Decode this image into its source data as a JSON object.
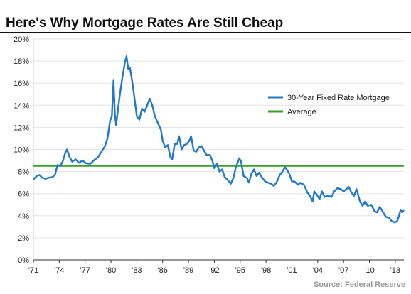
{
  "header": {
    "title": "Here's Why Mortgage Rates Are Still Cheap"
  },
  "footer": {
    "source": "Source: Federal Reserve"
  },
  "chart_data": {
    "type": "line",
    "title": "Here's Why Mortgage Rates Are Still Cheap",
    "xlabel": "",
    "ylabel": "",
    "xlim": [
      1971.0,
      2014.0
    ],
    "ylim": [
      0,
      20
    ],
    "y_tick_values": [
      0,
      2,
      4,
      6,
      8,
      10,
      12,
      14,
      16,
      18,
      20
    ],
    "y_tick_labels": [
      "0%",
      "2%",
      "4%",
      "6%",
      "8%",
      "10%",
      "12%",
      "14%",
      "16%",
      "18%",
      "20%"
    ],
    "x_tick_values": [
      1971,
      1974,
      1977,
      1980,
      1983,
      1986,
      1989,
      1992,
      1995,
      1998,
      2001,
      2004,
      2007,
      2010,
      2013
    ],
    "x_tick_labels": [
      "'71",
      "'74",
      "'77",
      "'80",
      "'83",
      "'86",
      "'89",
      "'92",
      "'95",
      "'98",
      "'01",
      "'04",
      "'07",
      "'10",
      "'13"
    ],
    "grid": "horizontal",
    "legend_position": "right",
    "series": [
      {
        "name": "30-Year Fixed Rate Mortgage",
        "color": "#1f78c8",
        "points": [
          [
            1971.0,
            7.3
          ],
          [
            1971.4,
            7.6
          ],
          [
            1971.7,
            7.7
          ],
          [
            1972.0,
            7.45
          ],
          [
            1972.4,
            7.35
          ],
          [
            1972.8,
            7.45
          ],
          [
            1973.2,
            7.5
          ],
          [
            1973.5,
            7.7
          ],
          [
            1973.8,
            8.6
          ],
          [
            1974.1,
            8.5
          ],
          [
            1974.4,
            8.9
          ],
          [
            1974.7,
            9.7
          ],
          [
            1974.9,
            10.0
          ],
          [
            1975.2,
            9.3
          ],
          [
            1975.5,
            8.9
          ],
          [
            1975.9,
            9.1
          ],
          [
            1976.3,
            8.8
          ],
          [
            1976.7,
            9.0
          ],
          [
            1977.1,
            8.75
          ],
          [
            1977.6,
            8.7
          ],
          [
            1978.0,
            9.0
          ],
          [
            1978.5,
            9.3
          ],
          [
            1978.9,
            9.8
          ],
          [
            1979.3,
            10.3
          ],
          [
            1979.6,
            11.0
          ],
          [
            1979.9,
            12.6
          ],
          [
            1980.1,
            13.0
          ],
          [
            1980.3,
            16.3
          ],
          [
            1980.45,
            13.2
          ],
          [
            1980.6,
            12.2
          ],
          [
            1980.8,
            13.5
          ],
          [
            1981.0,
            14.8
          ],
          [
            1981.3,
            16.4
          ],
          [
            1981.6,
            17.8
          ],
          [
            1981.8,
            18.45
          ],
          [
            1982.0,
            17.3
          ],
          [
            1982.2,
            17.4
          ],
          [
            1982.5,
            16.0
          ],
          [
            1982.7,
            14.8
          ],
          [
            1983.0,
            13.0
          ],
          [
            1983.3,
            12.7
          ],
          [
            1983.6,
            13.7
          ],
          [
            1983.9,
            13.4
          ],
          [
            1984.2,
            14.0
          ],
          [
            1984.5,
            14.6
          ],
          [
            1984.8,
            14.0
          ],
          [
            1985.1,
            13.0
          ],
          [
            1985.5,
            12.3
          ],
          [
            1985.8,
            11.8
          ],
          [
            1986.0,
            10.8
          ],
          [
            1986.3,
            10.2
          ],
          [
            1986.6,
            10.4
          ],
          [
            1986.9,
            9.3
          ],
          [
            1987.1,
            9.1
          ],
          [
            1987.4,
            10.5
          ],
          [
            1987.7,
            10.5
          ],
          [
            1987.9,
            11.2
          ],
          [
            1988.2,
            10.0
          ],
          [
            1988.5,
            10.4
          ],
          [
            1988.8,
            10.5
          ],
          [
            1989.1,
            10.8
          ],
          [
            1989.3,
            11.2
          ],
          [
            1989.6,
            9.9
          ],
          [
            1989.9,
            9.8
          ],
          [
            1990.2,
            10.2
          ],
          [
            1990.5,
            10.3
          ],
          [
            1990.8,
            9.9
          ],
          [
            1991.1,
            9.5
          ],
          [
            1991.5,
            9.5
          ],
          [
            1991.8,
            8.9
          ],
          [
            1992.0,
            8.3
          ],
          [
            1992.3,
            8.7
          ],
          [
            1992.6,
            8.0
          ],
          [
            1992.9,
            8.2
          ],
          [
            1993.2,
            7.5
          ],
          [
            1993.6,
            7.2
          ],
          [
            1993.9,
            6.9
          ],
          [
            1994.2,
            7.4
          ],
          [
            1994.5,
            8.4
          ],
          [
            1994.9,
            9.2
          ],
          [
            1995.1,
            8.9
          ],
          [
            1995.4,
            7.6
          ],
          [
            1995.8,
            7.4
          ],
          [
            1996.0,
            7.0
          ],
          [
            1996.3,
            7.8
          ],
          [
            1996.6,
            8.2
          ],
          [
            1996.9,
            7.6
          ],
          [
            1997.2,
            7.9
          ],
          [
            1997.5,
            7.5
          ],
          [
            1997.9,
            7.1
          ],
          [
            1998.2,
            7.0
          ],
          [
            1998.6,
            6.9
          ],
          [
            1998.9,
            6.7
          ],
          [
            1999.2,
            7.0
          ],
          [
            1999.6,
            7.7
          ],
          [
            1999.9,
            8.0
          ],
          [
            2000.2,
            8.4
          ],
          [
            2000.4,
            8.2
          ],
          [
            2000.7,
            7.8
          ],
          [
            2001.0,
            7.1
          ],
          [
            2001.3,
            7.1
          ],
          [
            2001.7,
            6.8
          ],
          [
            2002.0,
            7.0
          ],
          [
            2002.4,
            6.8
          ],
          [
            2002.8,
            6.1
          ],
          [
            2003.1,
            5.8
          ],
          [
            2003.4,
            5.3
          ],
          [
            2003.6,
            6.2
          ],
          [
            2003.9,
            5.9
          ],
          [
            2004.2,
            5.5
          ],
          [
            2004.5,
            6.2
          ],
          [
            2004.8,
            5.7
          ],
          [
            2005.2,
            5.8
          ],
          [
            2005.6,
            5.7
          ],
          [
            2005.9,
            6.2
          ],
          [
            2006.3,
            6.5
          ],
          [
            2006.7,
            6.4
          ],
          [
            2007.0,
            6.2
          ],
          [
            2007.3,
            6.4
          ],
          [
            2007.6,
            6.6
          ],
          [
            2007.9,
            6.1
          ],
          [
            2008.2,
            5.8
          ],
          [
            2008.5,
            6.4
          ],
          [
            2008.9,
            5.3
          ],
          [
            2009.2,
            4.9
          ],
          [
            2009.5,
            5.3
          ],
          [
            2009.8,
            4.9
          ],
          [
            2010.2,
            5.0
          ],
          [
            2010.6,
            4.4
          ],
          [
            2010.9,
            4.3
          ],
          [
            2011.2,
            4.8
          ],
          [
            2011.6,
            4.3
          ],
          [
            2011.9,
            3.9
          ],
          [
            2012.3,
            3.8
          ],
          [
            2012.6,
            3.5
          ],
          [
            2012.9,
            3.4
          ],
          [
            2013.2,
            3.5
          ],
          [
            2013.4,
            3.9
          ],
          [
            2013.6,
            4.5
          ],
          [
            2013.8,
            4.3
          ],
          [
            2014.0,
            4.5
          ]
        ]
      },
      {
        "name": "Average",
        "color": "#3a9e2c",
        "points": [
          [
            1971.0,
            8.5
          ],
          [
            2014.0,
            8.5
          ]
        ]
      }
    ]
  }
}
